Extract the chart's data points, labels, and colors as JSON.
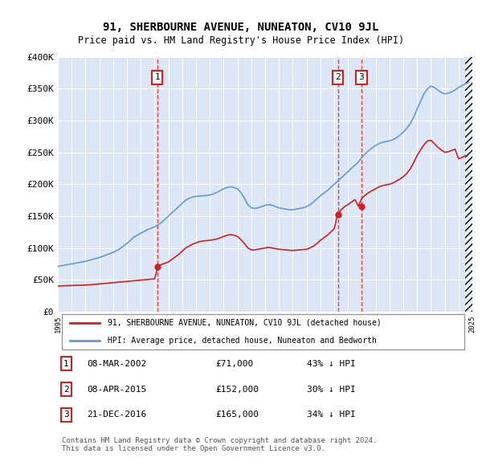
{
  "title": "91, SHERBOURNE AVENUE, NUNEATON, CV10 9JL",
  "subtitle": "Price paid vs. HM Land Registry's House Price Index (HPI)",
  "bg_color": "#e8eef8",
  "plot_bg_color": "#dce6f5",
  "x_start_year": 1995,
  "x_end_year": 2025,
  "y_max": 400000,
  "y_min": 0,
  "y_ticks": [
    0,
    50000,
    100000,
    150000,
    200000,
    250000,
    300000,
    350000,
    400000
  ],
  "sale_dates": [
    2002.19,
    2015.27,
    2016.97
  ],
  "sale_prices": [
    71000,
    152000,
    165000
  ],
  "sale_labels": [
    "1",
    "2",
    "3"
  ],
  "hpi_line_color": "#6699cc",
  "sale_line_color": "#cc2222",
  "dashed_line_color": "#dd4444",
  "legend_label_red": "91, SHERBOURNE AVENUE, NUNEATON, CV10 9JL (detached house)",
  "legend_label_blue": "HPI: Average price, detached house, Nuneaton and Bedworth",
  "table_rows": [
    [
      "1",
      "08-MAR-2002",
      "£71,000",
      "43% ↓ HPI"
    ],
    [
      "2",
      "08-APR-2015",
      "£152,000",
      "30% ↓ HPI"
    ],
    [
      "3",
      "21-DEC-2016",
      "£165,000",
      "34% ↓ HPI"
    ]
  ],
  "footer": "Contains HM Land Registry data © Crown copyright and database right 2024.\nThis data is licensed under the Open Government Licence v3.0.",
  "hpi_data_years": [
    1995,
    1995.25,
    1995.5,
    1995.75,
    1996,
    1996.25,
    1996.5,
    1996.75,
    1997,
    1997.25,
    1997.5,
    1997.75,
    1998,
    1998.25,
    1998.5,
    1998.75,
    1999,
    1999.25,
    1999.5,
    1999.75,
    2000,
    2000.25,
    2000.5,
    2000.75,
    2001,
    2001.25,
    2001.5,
    2001.75,
    2002,
    2002.25,
    2002.5,
    2002.75,
    2003,
    2003.25,
    2003.5,
    2003.75,
    2004,
    2004.25,
    2004.5,
    2004.75,
    2005,
    2005.25,
    2005.5,
    2005.75,
    2006,
    2006.25,
    2006.5,
    2006.75,
    2007,
    2007.25,
    2007.5,
    2007.75,
    2008,
    2008.25,
    2008.5,
    2008.75,
    2009,
    2009.25,
    2009.5,
    2009.75,
    2010,
    2010.25,
    2010.5,
    2010.75,
    2011,
    2011.25,
    2011.5,
    2011.75,
    2012,
    2012.25,
    2012.5,
    2012.75,
    2013,
    2013.25,
    2013.5,
    2013.75,
    2014,
    2014.25,
    2014.5,
    2014.75,
    2015,
    2015.25,
    2015.5,
    2015.75,
    2016,
    2016.25,
    2016.5,
    2016.75,
    2017,
    2017.25,
    2017.5,
    2017.75,
    2018,
    2018.25,
    2018.5,
    2018.75,
    2019,
    2019.25,
    2019.5,
    2019.75,
    2020,
    2020.25,
    2020.5,
    2020.75,
    2021,
    2021.25,
    2021.5,
    2021.75,
    2022,
    2022.25,
    2022.5,
    2022.75,
    2023,
    2023.25,
    2023.5,
    2023.75,
    2024,
    2024.25,
    2024.5,
    2024.75
  ],
  "hpi_data_values": [
    71000,
    72000,
    73000,
    74000,
    75000,
    76000,
    77000,
    78000,
    79000,
    80500,
    82000,
    83500,
    85000,
    87000,
    89000,
    91000,
    93000,
    96000,
    99000,
    103000,
    107000,
    112000,
    117000,
    120000,
    123000,
    126000,
    129000,
    131000,
    133000,
    136000,
    140000,
    145000,
    150000,
    155000,
    160000,
    165000,
    170000,
    175000,
    178000,
    180000,
    181000,
    181500,
    182000,
    182500,
    183000,
    185000,
    187000,
    190000,
    193000,
    195000,
    196000,
    195000,
    193000,
    187000,
    178000,
    168000,
    163000,
    162000,
    163000,
    165000,
    167000,
    168000,
    167000,
    165000,
    163000,
    162000,
    161000,
    160000,
    160000,
    161000,
    162000,
    163000,
    165000,
    168000,
    172000,
    177000,
    182000,
    186000,
    190000,
    195000,
    200000,
    205000,
    210000,
    215000,
    220000,
    225000,
    230000,
    235000,
    242000,
    248000,
    253000,
    257000,
    261000,
    264000,
    266000,
    267000,
    268000,
    270000,
    273000,
    277000,
    282000,
    288000,
    295000,
    305000,
    318000,
    330000,
    342000,
    350000,
    354000,
    352000,
    348000,
    344000,
    342000,
    343000,
    345000,
    348000,
    352000,
    355000,
    358000,
    360000
  ],
  "sale_hpi_values": [
    124760,
    217391,
    250000
  ],
  "property_data_years": [
    1995,
    1995.25,
    1995.5,
    1995.75,
    1996,
    1996.25,
    1996.5,
    1996.75,
    1997,
    1997.25,
    1997.5,
    1997.75,
    1998,
    1998.25,
    1998.5,
    1998.75,
    1999,
    1999.25,
    1999.5,
    1999.75,
    2000,
    2000.25,
    2000.5,
    2000.75,
    2001,
    2001.25,
    2001.5,
    2001.75,
    2002,
    2002.25,
    2002.5,
    2002.75,
    2003,
    2003.25,
    2003.5,
    2003.75,
    2004,
    2004.25,
    2004.5,
    2004.75,
    2005,
    2005.25,
    2005.5,
    2005.75,
    2006,
    2006.25,
    2006.5,
    2006.75,
    2007,
    2007.25,
    2007.5,
    2007.75,
    2008,
    2008.25,
    2008.5,
    2008.75,
    2009,
    2009.25,
    2009.5,
    2009.75,
    2010,
    2010.25,
    2010.5,
    2010.75,
    2011,
    2011.25,
    2011.5,
    2011.75,
    2012,
    2012.25,
    2012.5,
    2012.75,
    2013,
    2013.25,
    2013.5,
    2013.75,
    2014,
    2014.25,
    2014.5,
    2014.75,
    2015,
    2015.25,
    2015.5,
    2015.75,
    2016,
    2016.25,
    2016.5,
    2016.75,
    2017,
    2017.25,
    2017.5,
    2017.75,
    2018,
    2018.25,
    2018.5,
    2018.75,
    2019,
    2019.25,
    2019.5,
    2019.75,
    2020,
    2020.25,
    2020.5,
    2020.75,
    2021,
    2021.25,
    2021.5,
    2021.75,
    2022,
    2022.25,
    2022.5,
    2022.75,
    2023,
    2023.25,
    2023.5,
    2023.75,
    2024,
    2024.25,
    2024.5
  ],
  "property_data_values": [
    40000,
    40500,
    40700,
    40800,
    41000,
    41200,
    41400,
    41600,
    41800,
    42000,
    42500,
    43000,
    43500,
    44000,
    44500,
    45000,
    45500,
    46000,
    46500,
    47000,
    47500,
    48000,
    48500,
    49000,
    49500,
    50000,
    50500,
    51000,
    51500,
    72000,
    74000,
    76000,
    78000,
    82000,
    86000,
    90000,
    95000,
    100000,
    103000,
    106000,
    108000,
    110000,
    111000,
    111500,
    112000,
    113000,
    114000,
    116000,
    118000,
    120000,
    121000,
    120000,
    118000,
    113000,
    107000,
    100000,
    97000,
    97000,
    98000,
    99000,
    100000,
    101000,
    100000,
    99000,
    98000,
    97500,
    97000,
    96500,
    96000,
    96500,
    97000,
    97500,
    98000,
    100000,
    103000,
    107000,
    112000,
    116000,
    120000,
    125000,
    130000,
    153000,
    160000,
    165000,
    168000,
    172000,
    176000,
    166000,
    178000,
    183000,
    187000,
    190000,
    193000,
    196000,
    198000,
    199000,
    200000,
    202000,
    205000,
    208000,
    212000,
    217000,
    224000,
    234000,
    245000,
    254000,
    262000,
    268000,
    269000,
    264000,
    258000,
    254000,
    250000,
    251000,
    253000,
    255000,
    240000,
    242000,
    245000
  ]
}
